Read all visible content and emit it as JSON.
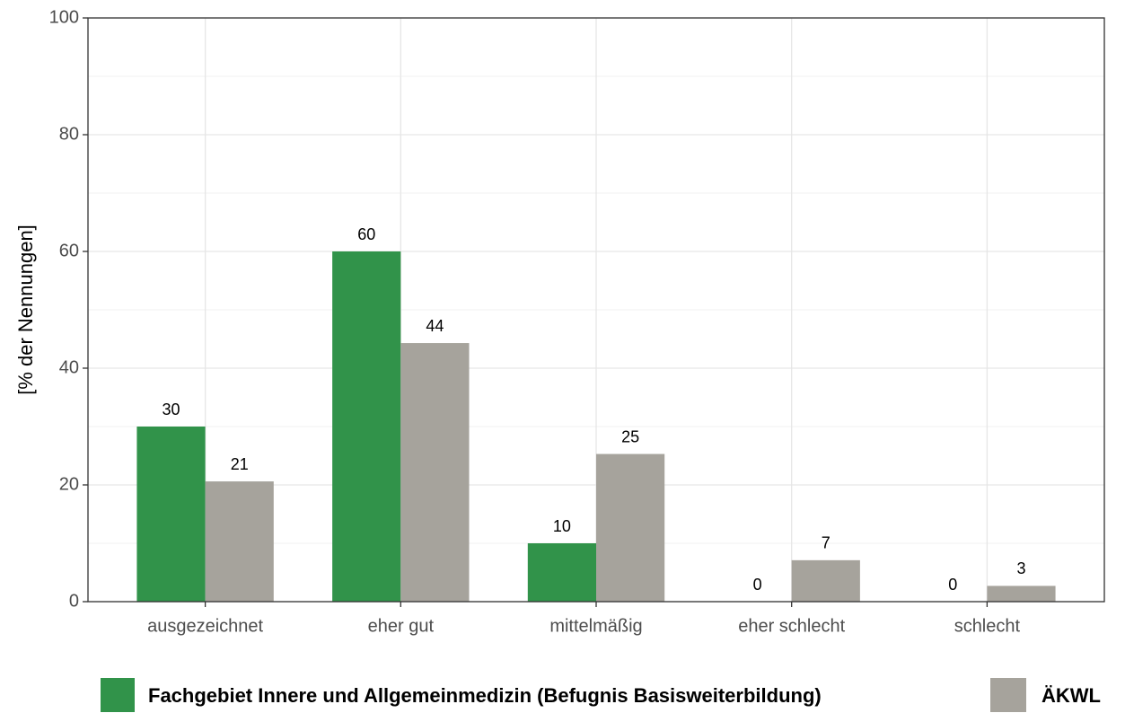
{
  "chart_data": {
    "type": "bar",
    "y_label": "[% der Nennungen]",
    "categories": [
      "ausgezeichnet",
      "eher gut",
      "mittelmäßig",
      "eher schlecht",
      "schlecht"
    ],
    "series": [
      {
        "name": "Fachgebiet Innere und Allgemeinmedizin (Befugnis Basisweiterbildung)",
        "color": "#31934a",
        "values": [
          30,
          60,
          10,
          0,
          0
        ]
      },
      {
        "name": "ÄKWL",
        "color": "#a6a39c",
        "values": [
          20.6,
          44.3,
          25.3,
          7.1,
          2.7
        ],
        "value_labels": [
          "21",
          "44",
          "25",
          "7",
          "3"
        ]
      }
    ],
    "ylim": [
      0,
      100
    ],
    "yticks": [
      0,
      20,
      40,
      60,
      80,
      100
    ],
    "grid": true,
    "legend": "bottom"
  }
}
